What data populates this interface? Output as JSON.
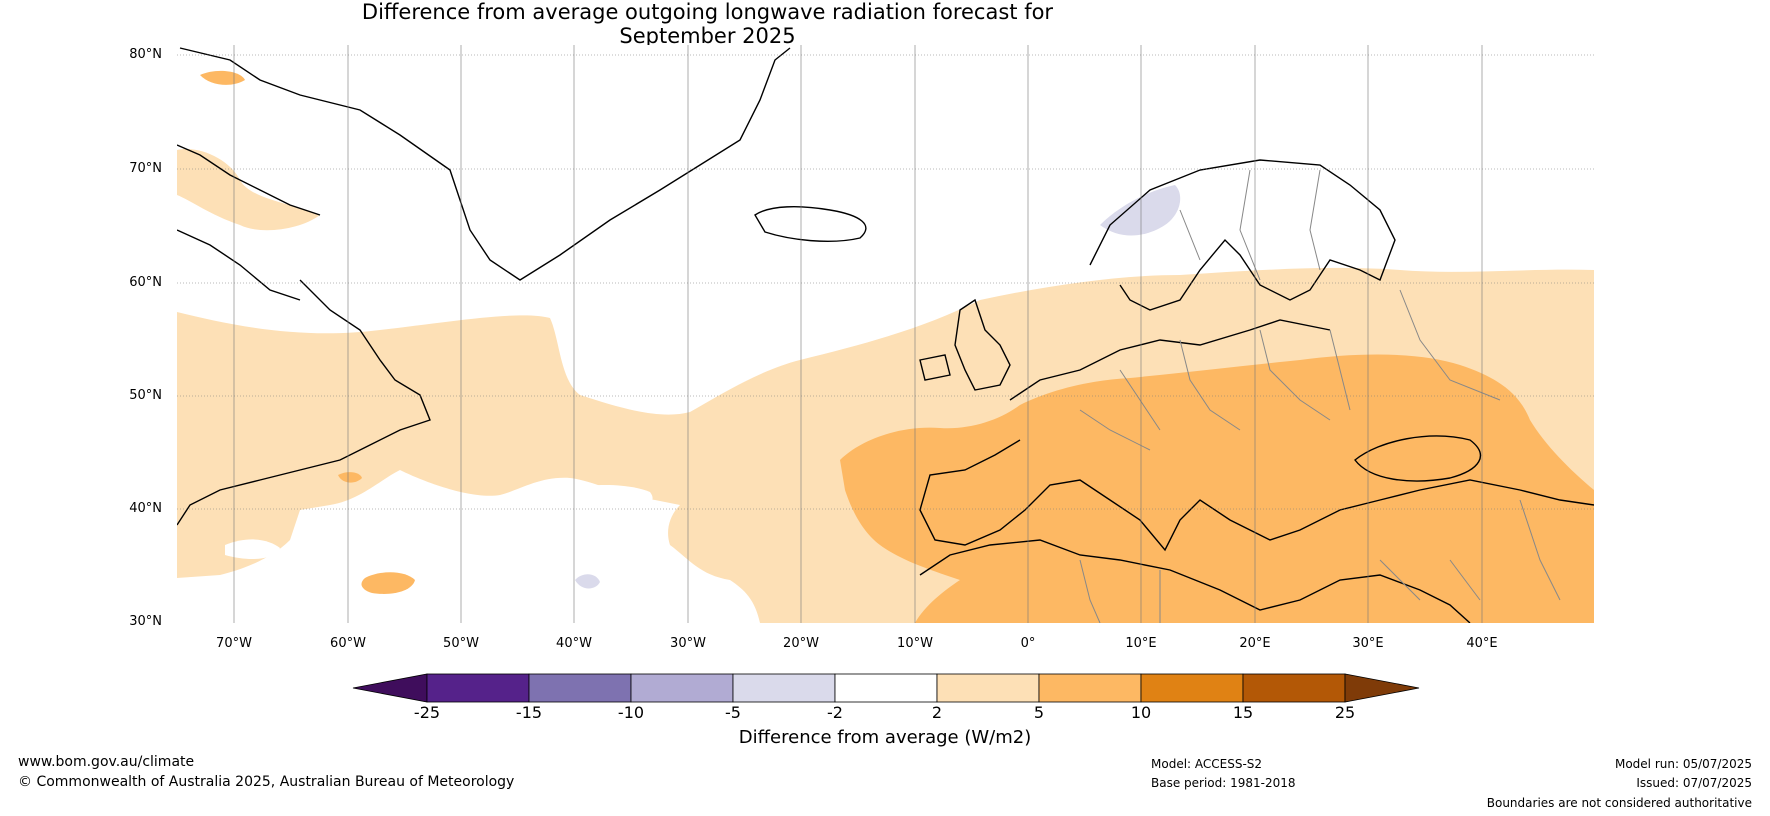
{
  "title_line1": "Difference from average outgoing longwave radiation forecast for",
  "title_line2": "September 2025",
  "lat_labels": [
    "80°N",
    "70°N",
    "60°N",
    "50°N",
    "40°N",
    "30°N"
  ],
  "lon_labels": [
    "70°W",
    "60°W",
    "50°W",
    "40°W",
    "30°W",
    "20°W",
    "10°W",
    "0°",
    "10°E",
    "20°E",
    "30°E",
    "40°E"
  ],
  "colorbar": {
    "ticks": [
      "-25",
      "-15",
      "-10",
      "-5",
      "-2",
      "2",
      "5",
      "10",
      "15",
      "25"
    ],
    "colors": [
      "#3f0d5c",
      "#55228a",
      "#7e72b0",
      "#b1abd3",
      "#dadaeb",
      "#ffffff",
      "#fde0b6",
      "#fdb863",
      "#e08214",
      "#b35806",
      "#7f3b08"
    ],
    "label": "Difference from average (W/m2)"
  },
  "footer": {
    "url": "www.bom.gov.au/climate",
    "copyright": "© Commonwealth of Australia 2025, Australian Bureau of Meteorology",
    "model": "Model: ACCESS-S2",
    "base_period": "Base period: 1981-2018",
    "model_run": "Model run: 05/07/2025",
    "issued": "Issued: 07/07/2025",
    "disclaimer": "Boundaries are not considered authoritative"
  }
}
